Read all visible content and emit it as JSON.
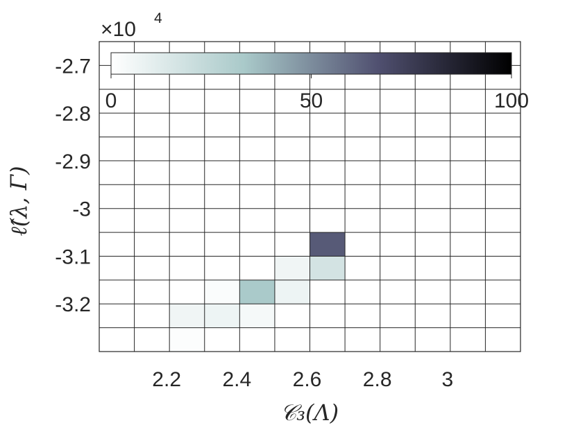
{
  "chart_data": {
    "type": "heatmap",
    "title": "",
    "xlabel": "𝒞₃(Λ)",
    "ylabel": "ℓ̂(λ, Γ)",
    "x_edges": [
      2.0,
      2.1,
      2.2,
      2.3,
      2.4,
      2.5,
      2.6,
      2.7,
      2.8,
      2.9,
      3.0,
      3.1,
      3.2
    ],
    "y_edges": [
      -3.3,
      -3.25,
      -3.2,
      -3.15,
      -3.1,
      -3.05,
      -3.0,
      -2.95,
      -2.9,
      -2.85,
      -2.8,
      -2.75,
      -2.7,
      -2.65
    ],
    "xlim": [
      2.0,
      3.2
    ],
    "ylim": [
      -3.3,
      -2.65
    ],
    "x_ticks": [
      2.2,
      2.4,
      2.6,
      2.8,
      3.0
    ],
    "x_tick_labels": [
      "2.2",
      "2.4",
      "2.6",
      "2.8",
      "3"
    ],
    "y_ticks": [
      -2.7,
      -2.8,
      -2.9,
      -3.0,
      -3.1,
      -3.2
    ],
    "y_tick_labels": [
      "-2.7",
      "-2.8",
      "-2.9",
      "-3",
      "-3.1",
      "-3.2"
    ],
    "cells": [
      {
        "x": [
          2.2,
          2.3
        ],
        "y": [
          -3.3,
          -3.25
        ],
        "value": 1
      },
      {
        "x": [
          2.2,
          2.3
        ],
        "y": [
          -3.25,
          -3.2
        ],
        "value": 6
      },
      {
        "x": [
          2.3,
          2.4
        ],
        "y": [
          -3.25,
          -3.2
        ],
        "value": 7
      },
      {
        "x": [
          2.4,
          2.5
        ],
        "y": [
          -3.25,
          -3.2
        ],
        "value": 4
      },
      {
        "x": [
          2.3,
          2.4
        ],
        "y": [
          -3.2,
          -3.15
        ],
        "value": 2
      },
      {
        "x": [
          2.4,
          2.5
        ],
        "y": [
          -3.2,
          -3.15
        ],
        "value": 33
      },
      {
        "x": [
          2.5,
          2.6
        ],
        "y": [
          -3.2,
          -3.15
        ],
        "value": 7
      },
      {
        "x": [
          2.5,
          2.6
        ],
        "y": [
          -3.15,
          -3.1
        ],
        "value": 6
      },
      {
        "x": [
          2.6,
          2.7
        ],
        "y": [
          -3.15,
          -3.1
        ],
        "value": 17
      },
      {
        "x": [
          2.6,
          2.7
        ],
        "y": [
          -3.1,
          -3.05
        ],
        "value": 64
      }
    ],
    "colorbar": {
      "location": "top",
      "ticks": [
        0,
        50,
        100
      ],
      "tick_labels": [
        "0",
        "50",
        "100"
      ],
      "scale_label": "×10",
      "scale_exponent": "4",
      "colormap": [
        "#ffffff",
        "#a9c9c9",
        "#505070",
        "#000000"
      ]
    },
    "grid": true
  }
}
